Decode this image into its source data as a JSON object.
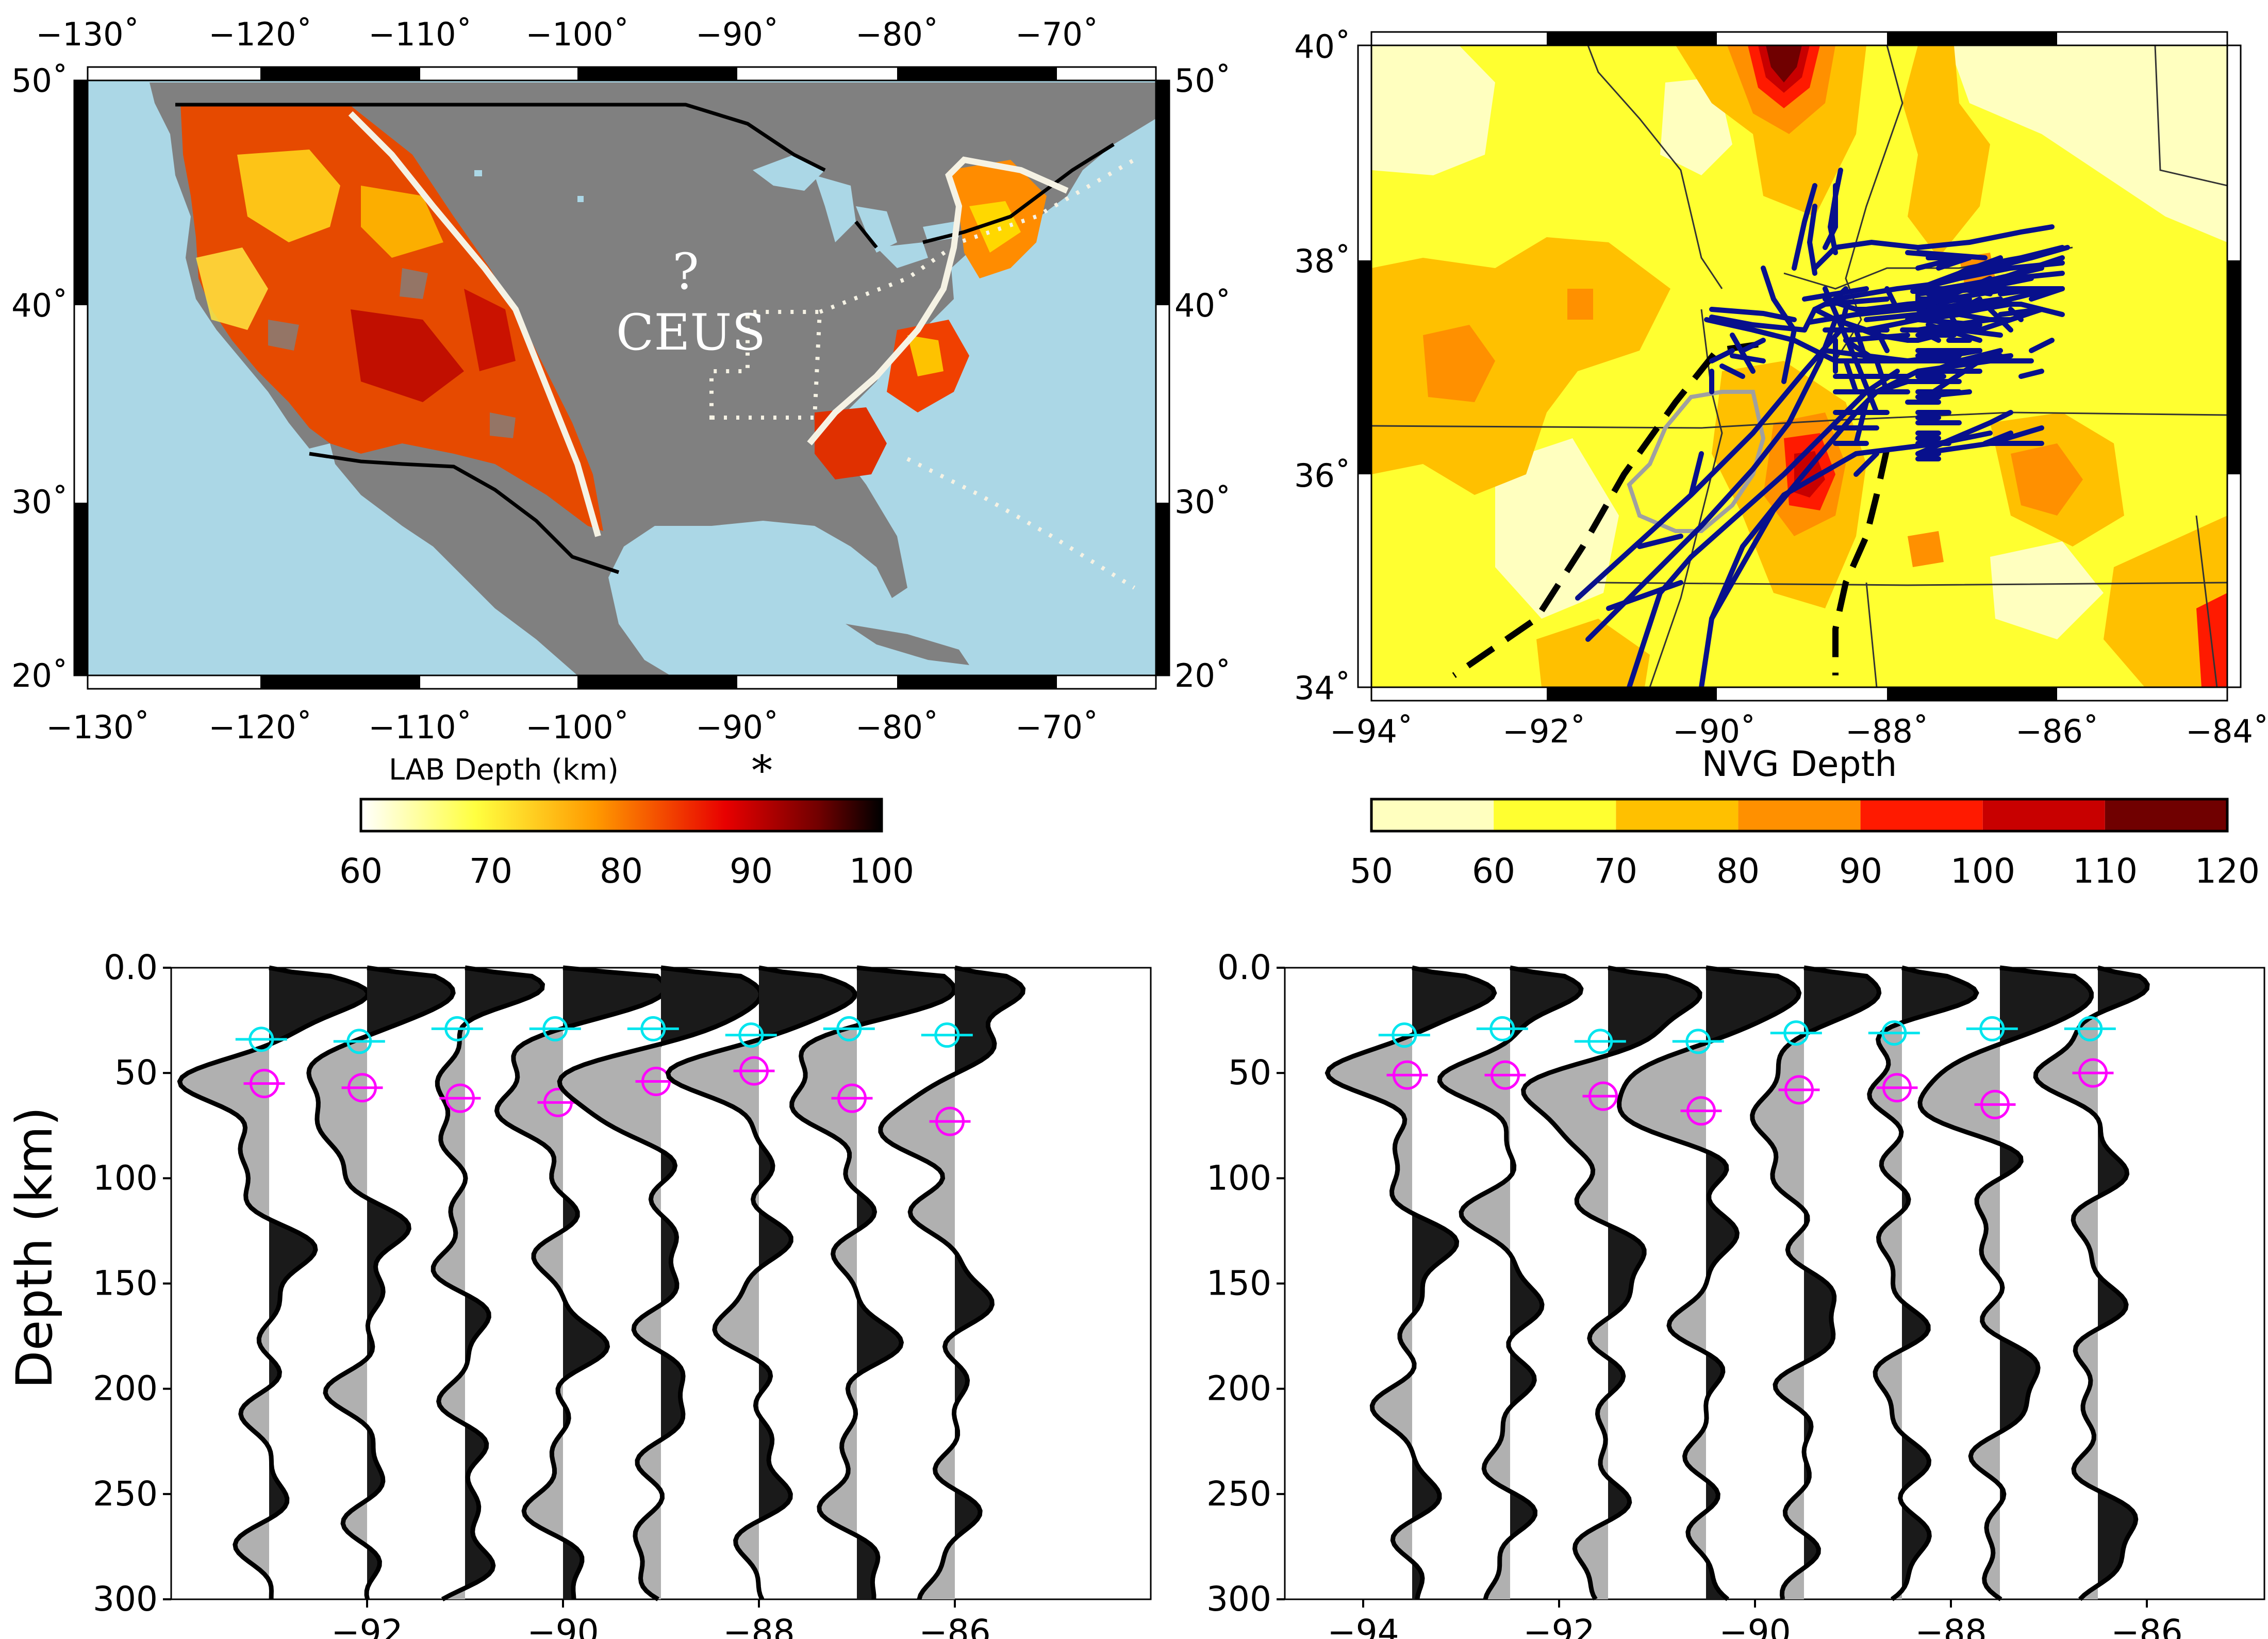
{
  "panels": {
    "map_a": {
      "top_ticks": [
        "−130˚",
        "−120˚",
        "−110˚",
        "−100˚",
        "−90˚",
        "−80˚",
        "−70˚"
      ],
      "bottom_ticks": [
        "−130˚",
        "−120˚",
        "−110˚",
        "−100˚",
        "−90˚",
        "−80˚",
        "−70˚"
      ],
      "left_ticks": [
        "50˚",
        "40˚",
        "30˚",
        "20˚"
      ],
      "right_ticks": [
        "50˚",
        "40˚",
        "30˚",
        "20˚"
      ],
      "annotation_question": "?",
      "annotation_region": "CEUS",
      "colorbar_label": "LAB Depth (km)",
      "colorbar_asterisk": "*",
      "colorbar_ticks": [
        "60",
        "70",
        "80",
        "90",
        "100"
      ],
      "colors": {
        "ocean": "#abd7e6",
        "land": "#808080",
        "boundary": "#f5f2e4"
      }
    },
    "map_b": {
      "left_ticks": [
        "40˚",
        "38˚",
        "36˚",
        "34˚"
      ],
      "bottom_ticks": [
        "−94˚",
        "−92˚",
        "−90˚",
        "−88˚",
        "−86˚",
        "−84˚"
      ],
      "colorbar_label": "NVG Depth",
      "colorbar_ticks": [
        "50",
        "60",
        "70",
        "80",
        "90",
        "100",
        "110",
        "120"
      ],
      "colorbar_colors": [
        "#ffffbf",
        "#ffff30",
        "#ffc000",
        "#ff9000",
        "#ff1a00",
        "#c80000",
        "#700000"
      ],
      "fault_color": "#08108c"
    }
  },
  "chart_data": [
    {
      "type": "line",
      "panel": "bottom-left",
      "ylabel": "Depth (km)",
      "ylim": [
        0,
        300
      ],
      "y_ticks": [
        "0.0",
        "50",
        "100",
        "150",
        "200",
        "250",
        "300"
      ],
      "x_ticks": [
        "−92",
        "−90",
        "−88",
        "−86"
      ],
      "xlim": [
        -94.0,
        -84.0
      ],
      "traces": [
        {
          "baseline": -93,
          "moho": 34,
          "lab": 55
        },
        {
          "baseline": -92,
          "moho": 35,
          "lab": 57
        },
        {
          "baseline": -91,
          "moho": 29,
          "lab": 62
        },
        {
          "baseline": -90,
          "moho": 29,
          "lab": 64
        },
        {
          "baseline": -89,
          "moho": 29,
          "lab": 54
        },
        {
          "baseline": -88,
          "moho": 32,
          "lab": 49
        },
        {
          "baseline": -87,
          "moho": 29,
          "lab": 62
        },
        {
          "baseline": -86,
          "moho": 32,
          "lab": 73
        }
      ]
    },
    {
      "type": "line",
      "panel": "bottom-right",
      "ylim": [
        0,
        300
      ],
      "y_ticks": [
        "0.0",
        "50",
        "100",
        "150",
        "200",
        "250",
        "300"
      ],
      "x_ticks": [
        "−94",
        "−92",
        "−90",
        "−88",
        "−86"
      ],
      "xlim": [
        -94.8,
        -84.8
      ],
      "traces": [
        {
          "baseline": -93.5,
          "moho": 32,
          "lab": 51
        },
        {
          "baseline": -92.5,
          "moho": 29,
          "lab": 51
        },
        {
          "baseline": -91.5,
          "moho": 35,
          "lab": 61
        },
        {
          "baseline": -90.5,
          "moho": 35,
          "lab": 68
        },
        {
          "baseline": -89.5,
          "moho": 31,
          "lab": 58
        },
        {
          "baseline": -88.5,
          "moho": 31,
          "lab": 57
        },
        {
          "baseline": -87.5,
          "moho": 29,
          "lab": 65
        },
        {
          "baseline": -86.5,
          "moho": 29,
          "lab": 50
        }
      ]
    }
  ]
}
